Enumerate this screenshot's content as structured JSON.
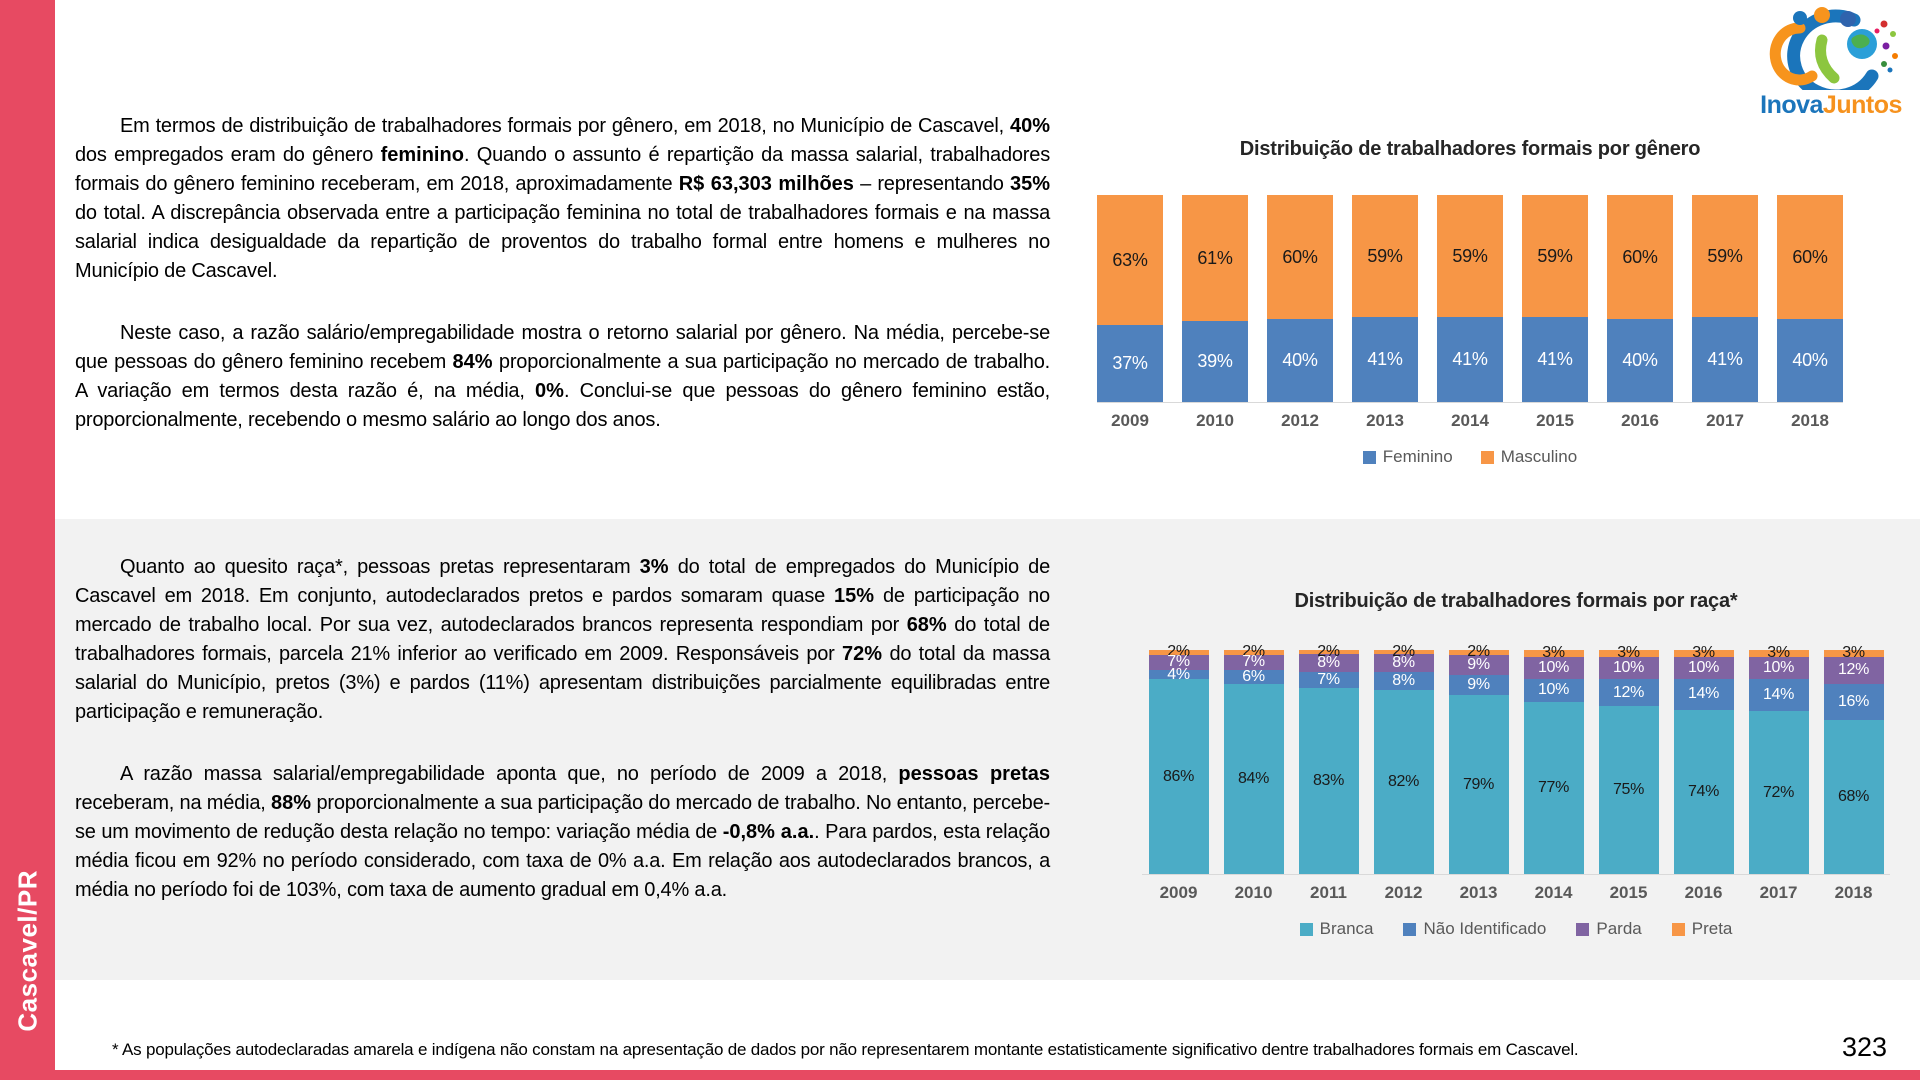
{
  "page": {
    "sidebar_label": "Cascavel/PR",
    "page_number": "323",
    "footnote": "* As populações autodeclaradas amarela e indígena não constam na apresentação de dados por não representarem montante estatisticamente significativo dentre trabalhadores formais em Cascavel.",
    "colors": {
      "sidebar_red": "#e74a62",
      "section_bg": "#f2f2f2",
      "blue": "#4f81bd",
      "orange": "#f79646",
      "teal": "#4bacc6",
      "purple": "#8064a2",
      "axis_text": "#595959"
    }
  },
  "logo": {
    "name": "InovaJuntos",
    "part1": "Inova",
    "part2": "Juntos",
    "color1": "#1b75bb",
    "color2": "#f6921e"
  },
  "sections": {
    "gender": {
      "paragraphs": [
        {
          "segments": [
            {
              "t": "Em termos de distribuição de trabalhadores formais por gênero, em 2018, no Município de Cascavel, "
            },
            {
              "t": "40%",
              "b": 1
            },
            {
              "t": " dos empregados eram do gênero "
            },
            {
              "t": "feminino",
              "b": 1
            },
            {
              "t": ". Quando o assunto é repartição da massa salarial, trabalhadores formais do gênero feminino receberam, em 2018, aproximadamente "
            },
            {
              "t": "R$ 63,303 milhões",
              "b": 1
            },
            {
              "t": " – representando "
            },
            {
              "t": "35%",
              "b": 1
            },
            {
              "t": " do total. A discrepância observada entre a participação feminina no total de trabalhadores formais e na massa salarial indica desigualdade da repartição de proventos do trabalho formal entre homens e mulheres no Município de Cascavel."
            }
          ]
        },
        {
          "segments": [
            {
              "t": "Neste caso, a razão salário/empregabilidade mostra o retorno salarial por gênero. Na média, percebe-se que pessoas do gênero feminino recebem "
            },
            {
              "t": "84%",
              "b": 1
            },
            {
              "t": " proporcionalmente a sua participação no mercado de trabalho. A variação em termos desta razão é, na média, "
            },
            {
              "t": "0%",
              "b": 1
            },
            {
              "t": ". Conclui-se que pessoas do gênero feminino estão, proporcionalmente, recebendo o mesmo salário ao longo dos anos."
            }
          ]
        }
      ]
    },
    "race": {
      "paragraphs": [
        {
          "segments": [
            {
              "t": "Quanto ao quesito raça*, pessoas pretas representaram "
            },
            {
              "t": "3%",
              "b": 1
            },
            {
              "t": " do total de empregados do Município de Cascavel em 2018. Em conjunto, autodeclarados pretos e pardos somaram quase "
            },
            {
              "t": "15%",
              "b": 1
            },
            {
              "t": " de participação no mercado de trabalho local. Por sua vez, autodeclarados brancos representa respondiam por "
            },
            {
              "t": "68%",
              "b": 1
            },
            {
              "t": " do total de trabalhadores formais, parcela 21% inferior ao verificado em 2009. Responsáveis por "
            },
            {
              "t": "72%",
              "b": 1
            },
            {
              "t": " do total da massa salarial do Município, pretos (3%) e pardos (11%) apresentam distribuições parcialmente equilibradas entre participação e remuneração."
            }
          ]
        },
        {
          "segments": [
            {
              "t": "A razão massa salarial/empregabilidade aponta que, no período de 2009 a 2018, "
            },
            {
              "t": "pessoas pretas",
              "b": 1
            },
            {
              "t": " receberam, na média, "
            },
            {
              "t": "88%",
              "b": 1
            },
            {
              "t": " proporcionalmente a sua participação do mercado de trabalho. No entanto, percebe-se um movimento de redução desta relação no tempo: variação média de "
            },
            {
              "t": "-0,8% a.a.",
              "b": 1
            },
            {
              "t": ". Para pardos, esta relação média ficou em 92% no período considerado, com taxa de 0% a.a. Em relação aos autodeclarados brancos, a média no período foi de 103%, com taxa de aumento gradual em 0,4% a.a."
            }
          ]
        }
      ]
    }
  },
  "chart_data": [
    {
      "type": "bar",
      "stacked": true,
      "title": "Distribuição de trabalhadores formais por gênero",
      "categories": [
        "2009",
        "2010",
        "2012",
        "2013",
        "2014",
        "2015",
        "2016",
        "2017",
        "2018"
      ],
      "series": [
        {
          "name": "Feminino",
          "color": "#4f81bd",
          "label_color": "#ffffff",
          "values": [
            37,
            39,
            40,
            41,
            41,
            41,
            40,
            41,
            40
          ]
        },
        {
          "name": "Masculino",
          "color": "#f79646",
          "label_color": "#1a1a1a",
          "values": [
            63,
            61,
            60,
            59,
            59,
            59,
            60,
            59,
            60
          ]
        }
      ],
      "ylim": [
        0,
        100
      ],
      "value_label_format": "percent",
      "grid": false,
      "legend_position": "bottom"
    },
    {
      "type": "bar",
      "stacked": true,
      "title": "Distribuição de trabalhadores formais por raça*",
      "categories": [
        "2009",
        "2010",
        "2011",
        "2012",
        "2013",
        "2014",
        "2015",
        "2016",
        "2017",
        "2018"
      ],
      "series": [
        {
          "name": "Branca",
          "color": "#4bacc6",
          "label_color": "#1a1a1a",
          "values": [
            86,
            84,
            83,
            82,
            79,
            77,
            75,
            74,
            72,
            68
          ]
        },
        {
          "name": "Não Identificado",
          "color": "#4f81bd",
          "label_color": "#ffffff",
          "values": [
            4,
            6,
            7,
            8,
            9,
            10,
            12,
            14,
            14,
            16
          ]
        },
        {
          "name": "Parda",
          "color": "#8064a2",
          "label_color": "#ffffff",
          "values": [
            7,
            7,
            8,
            8,
            9,
            10,
            10,
            10,
            10,
            12
          ]
        },
        {
          "name": "Preta",
          "color": "#f79646",
          "label_color": "#1a1a1a",
          "values": [
            2,
            2,
            2,
            2,
            2,
            3,
            3,
            3,
            3,
            3
          ]
        }
      ],
      "ylim": [
        0,
        100
      ],
      "value_label_format": "percent",
      "grid": false,
      "legend_position": "bottom"
    }
  ]
}
